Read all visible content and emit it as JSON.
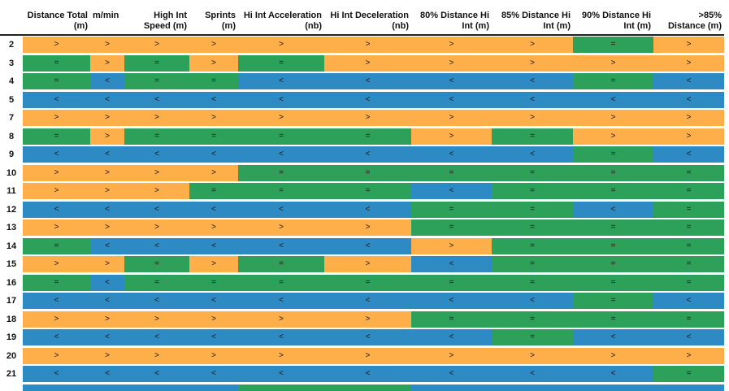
{
  "chart_data": {
    "type": "table",
    "columns": [
      "Distance Total\n(m)",
      "m/min",
      "High Int\nSpeed (m)",
      "Sprints\n(m)",
      "Hi Int Acceleration\n(nb)",
      "Hi Int Deceleration\n(nb)",
      "80% Distance Hi\nInt (m)",
      "85% Distance Hi\nInt (m)",
      "90% Distance Hi\nInt (m)",
      ">85%\nDistance (m)"
    ],
    "rows": [
      {
        "label": "2",
        "values": [
          ">",
          ">",
          ">",
          ">",
          ">",
          ">",
          ">",
          ">",
          "=",
          ">"
        ]
      },
      {
        "label": "3",
        "values": [
          "=",
          ">",
          "=",
          ">",
          "=",
          ">",
          ">",
          ">",
          ">",
          ">"
        ]
      },
      {
        "label": "4",
        "values": [
          "=",
          "<",
          "=",
          "=",
          "<",
          "<",
          "<",
          "<",
          "=",
          "<"
        ]
      },
      {
        "label": "5",
        "values": [
          "<",
          "<",
          "<",
          "<",
          "<",
          "<",
          "<",
          "<",
          "<",
          "<"
        ]
      },
      {
        "label": "7",
        "values": [
          ">",
          ">",
          ">",
          ">",
          ">",
          ">",
          ">",
          ">",
          ">",
          ">"
        ]
      },
      {
        "label": "8",
        "values": [
          "=",
          ">",
          "=",
          "=",
          "=",
          "=",
          ">",
          "=",
          ">",
          ">"
        ]
      },
      {
        "label": "9",
        "values": [
          "<",
          "<",
          "<",
          "<",
          "<",
          "<",
          "<",
          "<",
          "=",
          "<"
        ]
      },
      {
        "label": "10",
        "values": [
          ">",
          ">",
          ">",
          ">",
          "=",
          "=",
          "=",
          "=",
          "=",
          "="
        ]
      },
      {
        "label": "11",
        "values": [
          ">",
          ">",
          ">",
          "=",
          "=",
          "=",
          "<",
          "=",
          "=",
          "="
        ]
      },
      {
        "label": "12",
        "values": [
          "<",
          "<",
          "<",
          "<",
          "<",
          "<",
          "=",
          "=",
          "<",
          "="
        ]
      },
      {
        "label": "13",
        "values": [
          ">",
          ">",
          ">",
          ">",
          ">",
          ">",
          "=",
          "=",
          "=",
          "="
        ]
      },
      {
        "label": "14",
        "values": [
          "=",
          "<",
          "<",
          "<",
          "<",
          "<",
          ">",
          "=",
          "=",
          "="
        ]
      },
      {
        "label": "15",
        "values": [
          ">",
          ">",
          "=",
          ">",
          "=",
          ">",
          "<",
          "=",
          "=",
          "="
        ]
      },
      {
        "label": "16",
        "values": [
          "=",
          "<",
          "=",
          "=",
          "=",
          "=",
          "=",
          "=",
          "=",
          "="
        ]
      },
      {
        "label": "17",
        "values": [
          "<",
          "<",
          "<",
          "<",
          "<",
          "<",
          "<",
          "<",
          "=",
          "<"
        ]
      },
      {
        "label": "18",
        "values": [
          ">",
          ">",
          ">",
          ">",
          ">",
          ">",
          "=",
          "=",
          "=",
          "="
        ]
      },
      {
        "label": "19",
        "values": [
          "<",
          "<",
          "<",
          "<",
          "<",
          "<",
          "<",
          "=",
          "<",
          "<"
        ]
      },
      {
        "label": "20",
        "values": [
          ">",
          ">",
          ">",
          ">",
          ">",
          ">",
          ">",
          ">",
          ">",
          ">"
        ]
      },
      {
        "label": "21",
        "values": [
          "<",
          "<",
          "<",
          "<",
          "<",
          "<",
          "<",
          "<",
          "<",
          "="
        ]
      }
    ],
    "partial_row": {
      "values": [
        "<",
        "<",
        "<",
        "<",
        "=",
        "=",
        "<",
        "<",
        "<",
        "<"
      ]
    },
    "colors": {
      ">": "#FFAF4A",
      "=": "#2DA05A",
      "<": "#2E8AC3"
    }
  }
}
